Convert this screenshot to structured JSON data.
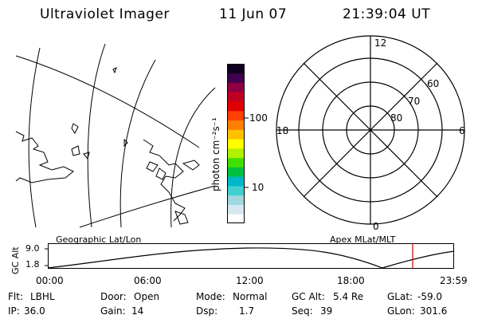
{
  "header": {
    "title": "Ultraviolet Imager",
    "date": "11 Jun 07",
    "time": "21:39:04 UT"
  },
  "colorbar": {
    "unit_label": "photon cm⁻²s⁻¹",
    "ticks": [
      "100",
      "10"
    ]
  },
  "polar_plot": {
    "mlt_labels": {
      "top": "12",
      "left": "18",
      "right": "6",
      "bottom": "0"
    },
    "lat_labels": [
      "60",
      "70",
      "80"
    ]
  },
  "panel_labels": {
    "left": "Geographic Lat/Lon",
    "right": "Apex MLat/MLT"
  },
  "timeline": {
    "ylabel": "GC Alt",
    "y_ticks": [
      "9.0",
      "1.8"
    ],
    "x_ticks": [
      "00:00",
      "06:00",
      "12:00",
      "18:00",
      "23:59"
    ],
    "current_time_marker": "21:39"
  },
  "status": {
    "row1": [
      {
        "label": "Flt:",
        "value": "LBHL"
      },
      {
        "label": "Door:",
        "value": "Open"
      },
      {
        "label": "Mode:",
        "value": "Normal"
      },
      {
        "label": "GC Alt:",
        "value": "5.4 Re"
      },
      {
        "label": "GLat:",
        "value": "-59.0"
      }
    ],
    "row2": [
      {
        "label": "IP:",
        "value": "36.0"
      },
      {
        "label": "Gain:",
        "value": "14"
      },
      {
        "label": "Dsp:",
        "value": "1.7"
      },
      {
        "label": "Seq:",
        "value": "39"
      },
      {
        "label": "GLon:",
        "value": "301.6"
      }
    ]
  },
  "colors": {
    "colorbar": [
      "#ffffff",
      "#d8e8f0",
      "#9fd8e0",
      "#40d0d0",
      "#00b8c8",
      "#00c040",
      "#40e000",
      "#b0f000",
      "#ffff00",
      "#ffc000",
      "#ff8000",
      "#ff4000",
      "#e00000",
      "#c00020",
      "#900040",
      "#400050",
      "#100020"
    ],
    "marker": "#cc0000"
  }
}
